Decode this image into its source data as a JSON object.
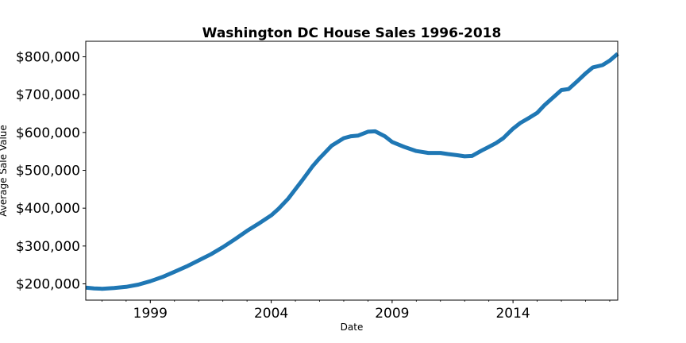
{
  "chart_data": {
    "type": "line",
    "title": "Washington DC House Sales 1996-2018",
    "xlabel": "Date",
    "ylabel": "Average Sale Value",
    "xlim": [
      1996.33,
      2018.33
    ],
    "ylim": [
      157000,
      841000
    ],
    "x_ticks": [
      {
        "value": 1999,
        "label": "1999"
      },
      {
        "value": 2004,
        "label": "2004"
      },
      {
        "value": 2009,
        "label": "2009"
      },
      {
        "value": 2014,
        "label": "2014"
      }
    ],
    "y_ticks": [
      {
        "value": 200000,
        "label": "$200,000"
      },
      {
        "value": 300000,
        "label": "$300,000"
      },
      {
        "value": 400000,
        "label": "$400,000"
      },
      {
        "value": 500000,
        "label": "$500,000"
      },
      {
        "value": 600000,
        "label": "$600,000"
      },
      {
        "value": 700000,
        "label": "$700,000"
      },
      {
        "value": 800000,
        "label": "$800,000"
      }
    ],
    "grid": false,
    "colors": {
      "line": "#1f77b4",
      "axis": "#000000"
    },
    "series": [
      {
        "x": [
          1996.33,
          1996.67,
          1997.0,
          1997.5,
          1998.0,
          1998.5,
          1999.0,
          1999.5,
          2000.0,
          2000.5,
          2001.0,
          2001.5,
          2002.0,
          2002.5,
          2003.0,
          2003.5,
          2004.0,
          2004.3,
          2004.7,
          2005.0,
          2005.3,
          2005.7,
          2006.0,
          2006.5,
          2007.0,
          2007.3,
          2007.6,
          2008.0,
          2008.3,
          2008.7,
          2009.0,
          2009.5,
          2010.0,
          2010.5,
          2011.0,
          2011.3,
          2011.7,
          2012.0,
          2012.3,
          2012.7,
          2013.0,
          2013.3,
          2013.6,
          2014.0,
          2014.3,
          2014.7,
          2015.0,
          2015.3,
          2015.7,
          2016.0,
          2016.3,
          2016.7,
          2017.0,
          2017.3,
          2017.7,
          2018.0,
          2018.33
        ],
        "y": [
          190000,
          188000,
          187000,
          189000,
          192000,
          198000,
          207000,
          218000,
          232000,
          246000,
          262000,
          278000,
          297000,
          318000,
          340000,
          360000,
          381000,
          398000,
          425000,
          450000,
          475000,
          510000,
          532000,
          565000,
          585000,
          590000,
          592000,
          602000,
          603000,
          590000,
          575000,
          562000,
          551000,
          546000,
          546000,
          543000,
          540000,
          537000,
          538000,
          552000,
          562000,
          572000,
          585000,
          610000,
          625000,
          640000,
          652000,
          672000,
          695000,
          712000,
          715000,
          738000,
          756000,
          772000,
          778000,
          790000,
          808000
        ]
      }
    ]
  }
}
